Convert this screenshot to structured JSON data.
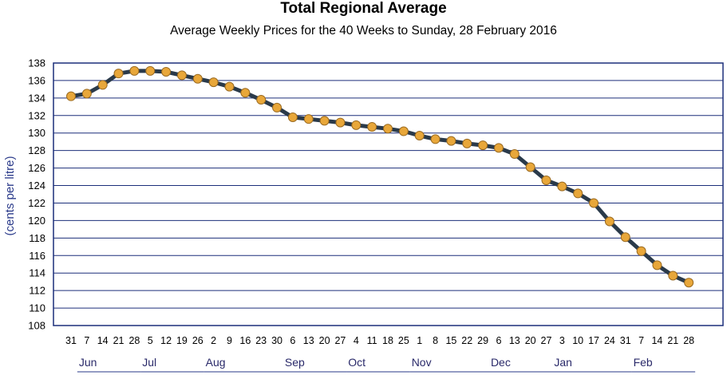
{
  "chart_data": {
    "type": "line",
    "title": "Total Regional Average",
    "subtitle": "Average Weekly Prices for the 40 Weeks to Sunday, 28 February 2016",
    "ylabel": "(cents per litre)",
    "xlabel": "",
    "ylim": [
      108,
      138
    ],
    "yticks": [
      108,
      110,
      112,
      114,
      116,
      118,
      120,
      122,
      124,
      126,
      128,
      130,
      132,
      134,
      136,
      138
    ],
    "grid": true,
    "x": [
      "31",
      "7",
      "14",
      "21",
      "28",
      "5",
      "12",
      "19",
      "26",
      "2",
      "9",
      "16",
      "23",
      "30",
      "6",
      "13",
      "20",
      "27",
      "4",
      "11",
      "18",
      "25",
      "1",
      "8",
      "15",
      "22",
      "29",
      "6",
      "13",
      "20",
      "27",
      "3",
      "10",
      "17",
      "24",
      "31",
      "7",
      "14",
      "21",
      "28"
    ],
    "months": [
      {
        "label": "Jun",
        "start": 1,
        "end": 4
      },
      {
        "label": "Jul",
        "start": 5,
        "end": 8
      },
      {
        "label": "Aug",
        "start": 9,
        "end": 13
      },
      {
        "label": "Sep",
        "start": 14,
        "end": 17
      },
      {
        "label": "Oct",
        "start": 18,
        "end": 21
      },
      {
        "label": "Nov",
        "start": 22,
        "end": 26
      },
      {
        "label": "Dec",
        "start": 27,
        "end": 30
      },
      {
        "label": "Jan",
        "start": 31,
        "end": 35
      },
      {
        "label": "Feb",
        "start": 36,
        "end": 39
      }
    ],
    "series": [
      {
        "values": [
          134.2,
          134.5,
          135.5,
          136.8,
          137.1,
          137.1,
          137.0,
          136.6,
          136.2,
          135.8,
          135.3,
          134.6,
          133.8,
          132.9,
          131.8,
          131.6,
          131.4,
          131.2,
          130.9,
          130.7,
          130.5,
          130.2,
          129.7,
          129.3,
          129.1,
          128.8,
          128.6,
          128.3,
          127.6,
          126.1,
          124.6,
          123.9,
          123.1,
          122.0,
          119.9,
          118.1,
          116.5,
          114.9,
          113.7,
          112.9
        ]
      }
    ]
  },
  "colors": {
    "frame": "#1c2f7a",
    "grid": "#1c2f7a",
    "line": "#2a3a4a",
    "marker_fill": "#e8a73a",
    "marker_stroke": "#9a6a20",
    "month_underline": "#2a3a8a"
  }
}
